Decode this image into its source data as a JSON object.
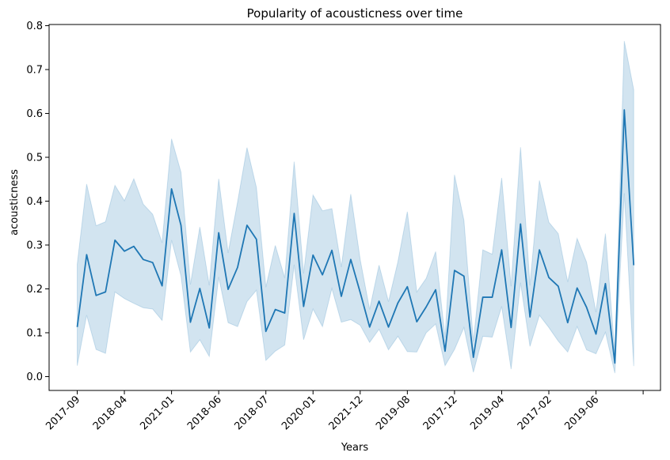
{
  "chart_data": {
    "type": "line",
    "title": "Popularity of acousticness over time",
    "xlabel": "Years",
    "ylabel": "acousticness",
    "ylim": [
      0.0,
      0.8
    ],
    "yticks": [
      "0.0",
      "0.1",
      "0.2",
      "0.3",
      "0.4",
      "0.5",
      "0.6",
      "0.7",
      "0.8"
    ],
    "xtick_labels": [
      "2017-09",
      "2018-04",
      "2021-01",
      "2018-06",
      "2018-07",
      "2020-01",
      "2021-12",
      "2019-08",
      "2017-12",
      "2019-04",
      "2017-02",
      "2019-06",
      ""
    ],
    "xtick_positions": [
      0,
      5,
      10,
      15,
      20,
      25,
      30,
      35,
      40,
      45,
      50,
      55,
      60
    ],
    "grid": false,
    "colors": {
      "line": "#1f77b4",
      "band": "#1f77b4"
    },
    "series": [
      {
        "values": [
          0.113,
          0.278,
          0.185,
          0.193,
          0.311,
          0.286,
          0.297,
          0.267,
          0.26,
          0.207,
          0.428,
          0.345,
          0.124,
          0.201,
          0.111,
          0.328,
          0.199,
          0.249,
          0.345,
          0.313,
          0.103,
          0.153,
          0.145,
          0.372,
          0.16,
          0.277,
          0.232,
          0.288,
          0.183,
          0.267,
          0.192,
          0.113,
          0.172,
          0.113,
          0.168,
          0.205,
          0.125,
          0.159,
          0.198,
          0.058,
          0.242,
          0.229,
          0.044,
          0.181,
          0.181,
          0.289,
          0.112,
          0.348,
          0.136,
          0.289,
          0.226,
          0.206,
          0.123,
          0.202,
          0.158,
          0.097,
          0.212,
          0.031,
          0.608,
          0.254
        ],
        "lower": [
          0.025,
          0.14,
          0.062,
          0.053,
          0.193,
          0.178,
          0.167,
          0.157,
          0.154,
          0.128,
          0.311,
          0.23,
          0.056,
          0.084,
          0.046,
          0.227,
          0.123,
          0.114,
          0.171,
          0.197,
          0.037,
          0.058,
          0.072,
          0.255,
          0.084,
          0.154,
          0.114,
          0.201,
          0.124,
          0.13,
          0.117,
          0.078,
          0.108,
          0.061,
          0.092,
          0.057,
          0.056,
          0.1,
          0.12,
          0.025,
          0.062,
          0.112,
          0.01,
          0.092,
          0.09,
          0.16,
          0.017,
          0.214,
          0.069,
          0.14,
          0.112,
          0.081,
          0.056,
          0.114,
          0.061,
          0.052,
          0.101,
          0.008,
          0.418,
          0.024
        ],
        "upper": [
          0.256,
          0.439,
          0.344,
          0.353,
          0.436,
          0.401,
          0.451,
          0.393,
          0.37,
          0.305,
          0.542,
          0.466,
          0.21,
          0.341,
          0.208,
          0.451,
          0.282,
          0.398,
          0.522,
          0.431,
          0.204,
          0.299,
          0.225,
          0.49,
          0.235,
          0.414,
          0.378,
          0.383,
          0.25,
          0.416,
          0.267,
          0.153,
          0.254,
          0.171,
          0.262,
          0.376,
          0.193,
          0.224,
          0.285,
          0.089,
          0.46,
          0.356,
          0.08,
          0.289,
          0.279,
          0.453,
          0.206,
          0.523,
          0.208,
          0.447,
          0.352,
          0.326,
          0.216,
          0.315,
          0.261,
          0.147,
          0.326,
          0.053,
          0.765,
          0.654
        ]
      }
    ]
  }
}
